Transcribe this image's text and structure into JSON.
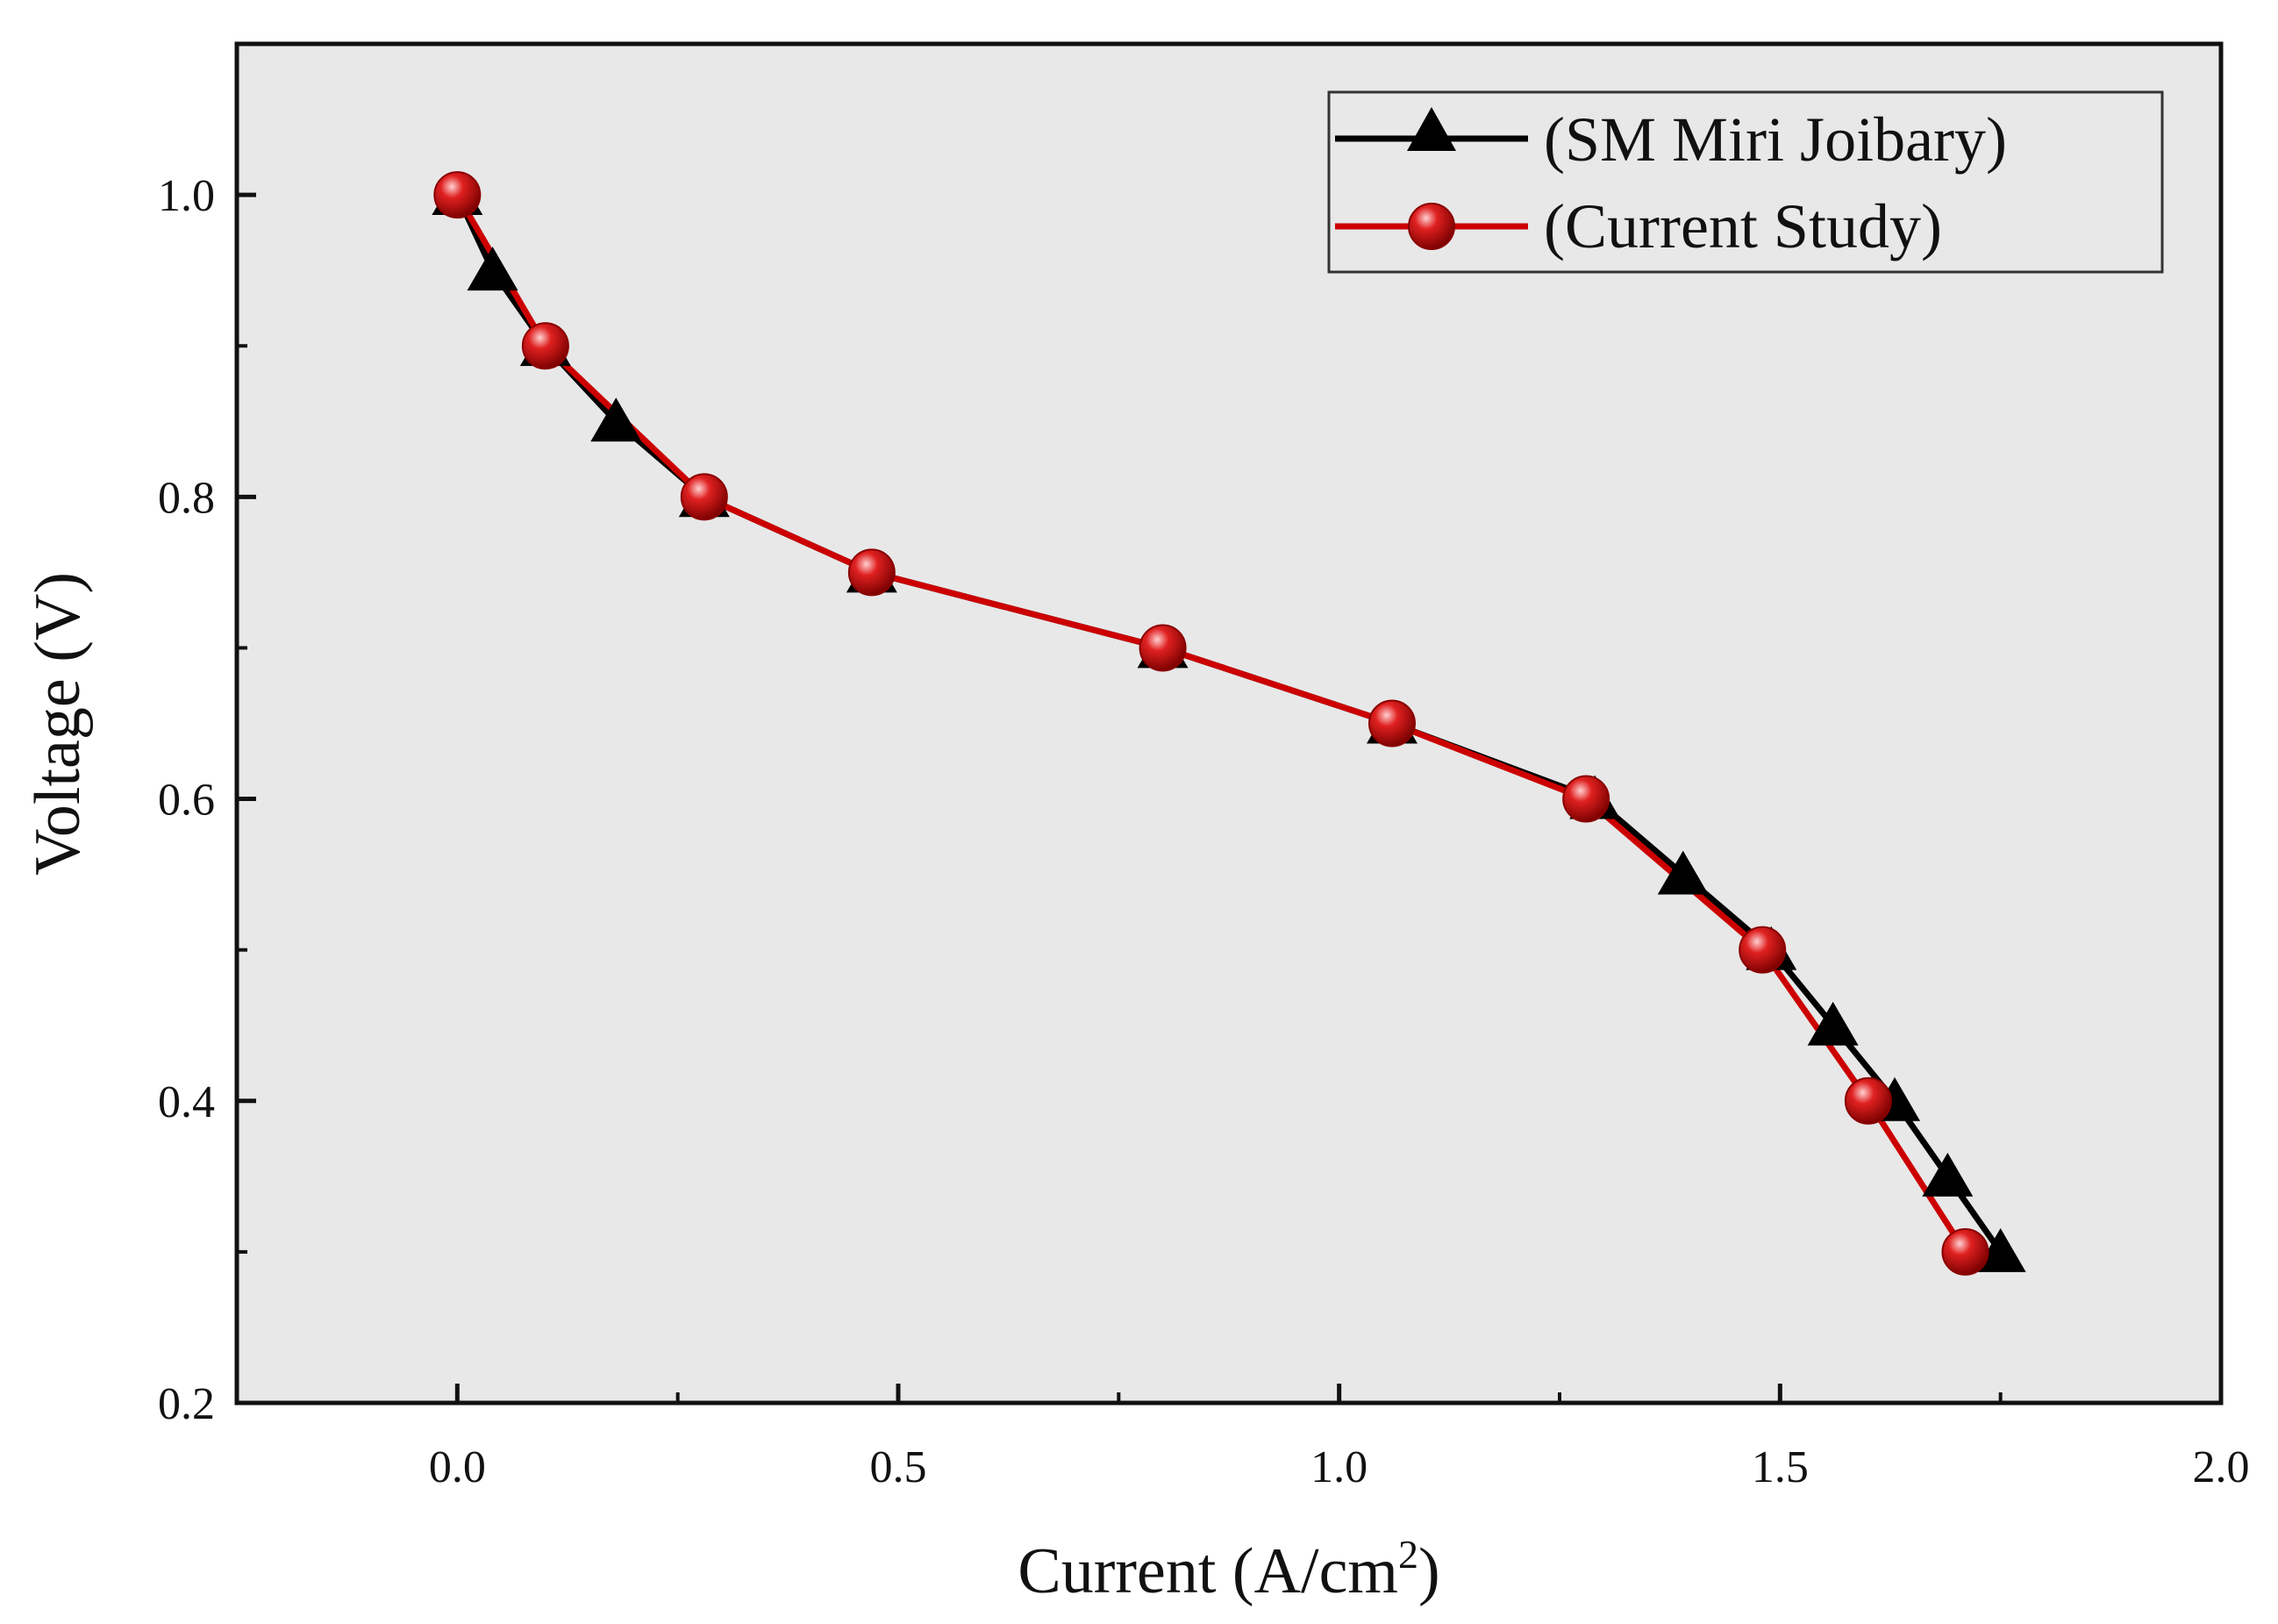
{
  "chart_data": {
    "type": "line",
    "title": "",
    "xlabel": "Current (A/cm",
    "xlabel_sup": "2",
    "xlabel_close": ")",
    "ylabel": "Voltage (V)",
    "xlim": [
      -0.25,
      2.0
    ],
    "ylim": [
      0.2,
      1.1
    ],
    "xticks": [
      0.0,
      0.5,
      1.0,
      1.5,
      2.0
    ],
    "xtick_labels": [
      "0.0",
      "0.5",
      "1.0",
      "1.5",
      "2.0"
    ],
    "yticks": [
      0.2,
      0.4,
      0.6,
      0.8,
      1.0
    ],
    "ytick_labels": [
      "0.2",
      "0.4",
      "0.6",
      "0.8",
      "1.0"
    ],
    "grid": false,
    "background": "#e8e8e8",
    "legend_position": "top-right",
    "series": [
      {
        "name": "(SM Miri Joibary)",
        "color": "#000000",
        "marker": "triangle",
        "x": [
          0.0,
          0.04,
          0.1,
          0.18,
          0.28,
          0.47,
          0.8,
          1.06,
          1.29,
          1.39,
          1.49,
          1.56,
          1.63,
          1.69,
          1.75
        ],
        "y": [
          1.0,
          0.95,
          0.9,
          0.85,
          0.8,
          0.75,
          0.7,
          0.65,
          0.6,
          0.55,
          0.5,
          0.45,
          0.4,
          0.35,
          0.3
        ]
      },
      {
        "name": "(Current Study)",
        "color": "#cc0000",
        "marker": "circle",
        "x": [
          0.0,
          0.1,
          0.28,
          0.47,
          0.8,
          1.06,
          1.28,
          1.48,
          1.6,
          1.71
        ],
        "y": [
          1.0,
          0.9,
          0.8,
          0.75,
          0.7,
          0.65,
          0.6,
          0.5,
          0.4,
          0.3
        ]
      }
    ]
  }
}
